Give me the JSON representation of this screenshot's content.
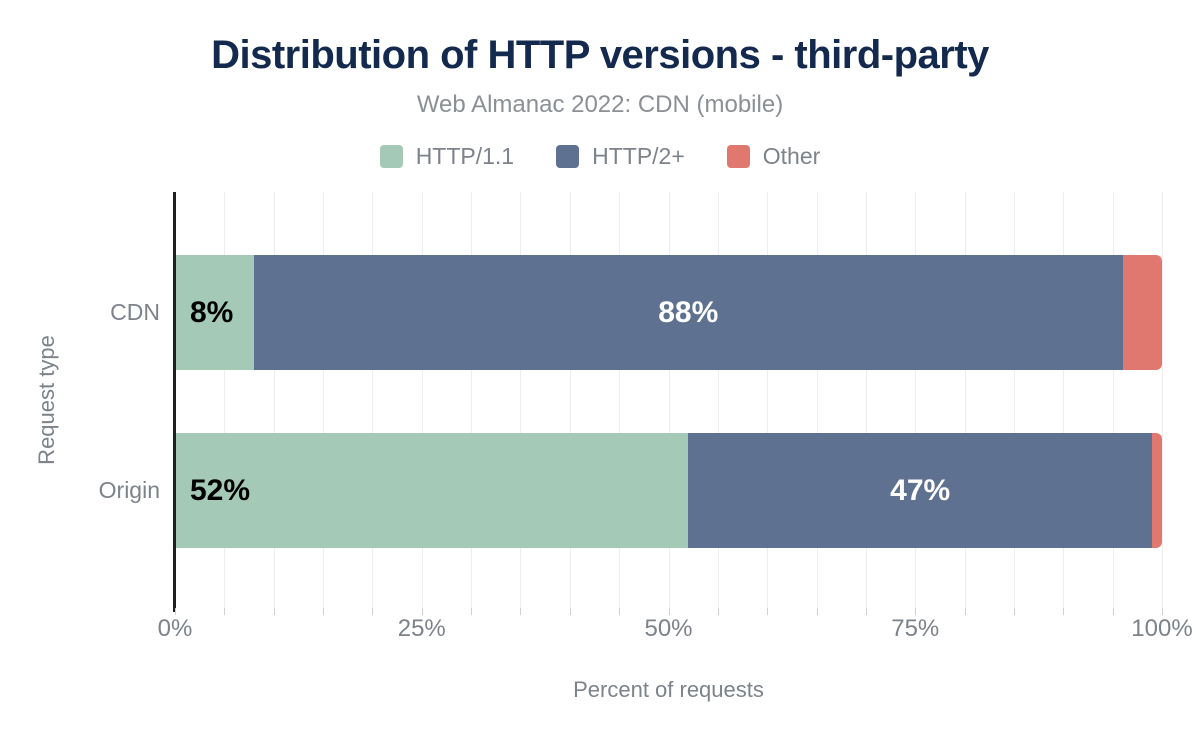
{
  "chart_data": {
    "type": "bar",
    "orientation": "horizontal",
    "stacked": true,
    "title": "Distribution of HTTP versions - third-party",
    "subtitle": "Web Almanac 2022: CDN (mobile)",
    "xlabel": "Percent of requests",
    "ylabel": "Request type",
    "xlim": [
      0,
      100
    ],
    "x_ticks": [
      {
        "label": "0%",
        "value": 0
      },
      {
        "label": "25%",
        "value": 25
      },
      {
        "label": "50%",
        "value": 50
      },
      {
        "label": "75%",
        "value": 75
      },
      {
        "label": "100%",
        "value": 100
      }
    ],
    "minor_grid_step": 5,
    "legend_position": "top",
    "categories": [
      "CDN",
      "Origin"
    ],
    "series": [
      {
        "name": "HTTP/1.1",
        "color": "#a5c9b7",
        "values": [
          8,
          52
        ],
        "labels": [
          "8%",
          "52%"
        ]
      },
      {
        "name": "HTTP/2+",
        "color": "#5e7190",
        "values": [
          88,
          47
        ],
        "labels": [
          "88%",
          "47%"
        ]
      },
      {
        "name": "Other",
        "color": "#e1786f",
        "values": [
          4,
          1
        ],
        "labels": [
          "",
          ""
        ]
      }
    ]
  },
  "colors": {
    "title": "#13294d",
    "muted_text": "#7d838a",
    "gridline": "#ededf0",
    "axis_line": "#1d1f22"
  }
}
